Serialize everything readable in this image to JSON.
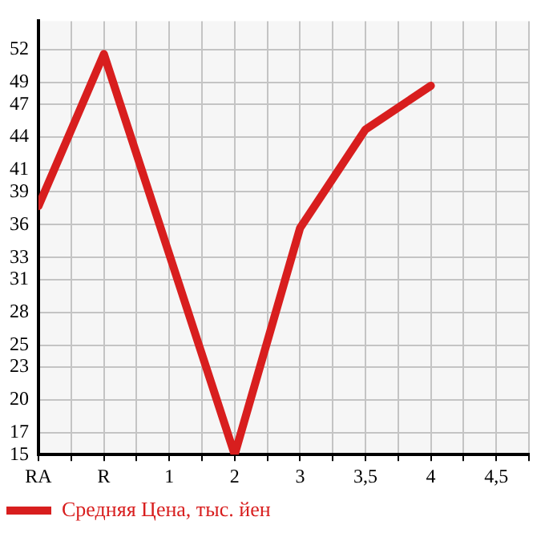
{
  "chart_data": {
    "type": "line",
    "categories": [
      "RA",
      "R",
      "1",
      "2",
      "3",
      "3,5",
      "4",
      "4,5"
    ],
    "series": [
      {
        "name": "Средняя Цена, тыс. йен",
        "color": "#d81e1e",
        "values": [
          37.7,
          51.6,
          33.3,
          15,
          35.7,
          44.7,
          48.7,
          null
        ]
      }
    ],
    "ylim": [
      15,
      54.6
    ],
    "yticks": [
      15,
      17,
      20,
      23,
      25,
      28,
      31,
      33,
      36,
      39,
      41,
      44,
      47,
      49,
      52
    ],
    "grid": true,
    "legend": "bottom left",
    "marker": "none",
    "line_style": "solid"
  }
}
